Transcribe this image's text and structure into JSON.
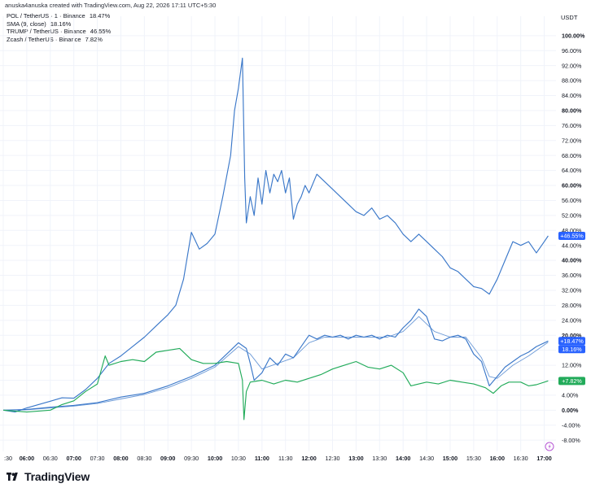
{
  "attribution": "anuska4anuska created with TradingView.com, Aug 22, 2026 17:11 UTC+5:30",
  "brand": "TradingView",
  "chart_data": {
    "type": "line",
    "unit_label": "USDT",
    "legend_placement": "top-left",
    "grid": true,
    "ylim": [
      -11,
      103
    ],
    "x_time_range": [
      "05:30",
      "17:15"
    ],
    "y_tick_labels": [
      "-8.00%",
      "-4.00%",
      "0.00%",
      "4.00%",
      "8.00%",
      "12.00%",
      "16.00%",
      "20.00%",
      "24.00%",
      "28.00%",
      "32.00%",
      "36.00%",
      "40.00%",
      "44.00%",
      "48.00%",
      "52.00%",
      "56.00%",
      "60.00%",
      "64.00%",
      "68.00%",
      "72.00%",
      "76.00%",
      "80.00%",
      "84.00%",
      "88.00%",
      "92.00%",
      "96.00%",
      "100.00%"
    ],
    "y_tick_values": [
      -8,
      -4,
      0,
      4,
      8,
      12,
      16,
      20,
      24,
      28,
      32,
      36,
      40,
      44,
      48,
      52,
      56,
      60,
      64,
      68,
      72,
      76,
      80,
      84,
      88,
      92,
      96,
      100
    ],
    "y_bold_values": [
      0,
      20,
      40,
      60,
      80,
      100
    ],
    "x_tick_labels": [
      ":30",
      "06:00",
      "06:30",
      "07:00",
      "07:30",
      "08:00",
      "08:30",
      "09:00",
      "09:30",
      "10:00",
      "10:30",
      "11:00",
      "11:30",
      "12:00",
      "12:30",
      "13:00",
      "13:30",
      "14:00",
      "14:30",
      "15:00",
      "15:30",
      "16:00",
      "16:30",
      "17:00"
    ],
    "x_tick_times": [
      "05:30",
      "06:00",
      "06:30",
      "07:00",
      "07:30",
      "08:00",
      "08:30",
      "09:00",
      "09:30",
      "10:00",
      "10:30",
      "11:00",
      "11:30",
      "12:00",
      "12:30",
      "13:00",
      "13:30",
      "14:00",
      "14:30",
      "15:00",
      "15:30",
      "16:00",
      "16:30",
      "17:00"
    ],
    "x_bold_labels": [
      "06:00",
      "07:00",
      "08:00",
      "09:00",
      "10:00",
      "11:00",
      "12:00",
      "13:00",
      "14:00",
      "15:00",
      "16:00",
      "17:00"
    ],
    "series": [
      {
        "name": "TRUMP / TetherUS · Binance",
        "legend_value": "46.55%",
        "last_label": "+46.55%",
        "color": "#3b78c9",
        "points": [
          [
            "05:30",
            0
          ],
          [
            "05:45",
            -0.5
          ],
          [
            "06:00",
            0.6
          ],
          [
            "06:15",
            1.5
          ],
          [
            "06:30",
            2.4
          ],
          [
            "06:45",
            3.3
          ],
          [
            "07:00",
            3.2
          ],
          [
            "07:15",
            5.5
          ],
          [
            "07:30",
            8.5
          ],
          [
            "07:45",
            12.5
          ],
          [
            "08:00",
            14.5
          ],
          [
            "08:15",
            17
          ],
          [
            "08:30",
            19.5
          ],
          [
            "08:45",
            22.5
          ],
          [
            "09:00",
            25.5
          ],
          [
            "09:10",
            28
          ],
          [
            "09:20",
            35
          ],
          [
            "09:30",
            47.5
          ],
          [
            "09:40",
            43
          ],
          [
            "09:50",
            44.5
          ],
          [
            "10:00",
            47
          ],
          [
            "10:10",
            57
          ],
          [
            "10:20",
            68
          ],
          [
            "10:25",
            80
          ],
          [
            "10:30",
            86
          ],
          [
            "10:35",
            94
          ],
          [
            "10:38",
            62
          ],
          [
            "10:40",
            50
          ],
          [
            "10:45",
            57
          ],
          [
            "10:50",
            52
          ],
          [
            "10:55",
            62
          ],
          [
            "11:00",
            55
          ],
          [
            "11:05",
            64
          ],
          [
            "11:10",
            58
          ],
          [
            "11:15",
            63
          ],
          [
            "11:20",
            61
          ],
          [
            "11:25",
            64
          ],
          [
            "11:30",
            58
          ],
          [
            "11:35",
            62
          ],
          [
            "11:40",
            51
          ],
          [
            "11:45",
            55
          ],
          [
            "11:50",
            57
          ],
          [
            "11:55",
            60
          ],
          [
            "12:00",
            58
          ],
          [
            "12:10",
            63
          ],
          [
            "12:20",
            61
          ],
          [
            "12:30",
            59
          ],
          [
            "12:40",
            57
          ],
          [
            "12:50",
            55
          ],
          [
            "13:00",
            53
          ],
          [
            "13:10",
            52
          ],
          [
            "13:20",
            54
          ],
          [
            "13:30",
            51
          ],
          [
            "13:40",
            52
          ],
          [
            "13:50",
            50
          ],
          [
            "14:00",
            47
          ],
          [
            "14:10",
            45
          ],
          [
            "14:20",
            47
          ],
          [
            "14:30",
            45
          ],
          [
            "14:40",
            43
          ],
          [
            "14:50",
            41
          ],
          [
            "15:00",
            38
          ],
          [
            "15:10",
            37
          ],
          [
            "15:20",
            35
          ],
          [
            "15:30",
            33
          ],
          [
            "15:40",
            32.5
          ],
          [
            "15:50",
            31
          ],
          [
            "16:00",
            35
          ],
          [
            "16:10",
            40
          ],
          [
            "16:20",
            45
          ],
          [
            "16:30",
            44
          ],
          [
            "16:40",
            45
          ],
          [
            "16:50",
            42
          ],
          [
            "17:00",
            45
          ],
          [
            "17:05",
            46.55
          ]
        ]
      },
      {
        "name": "POL / TetherUS · 1 · Binance",
        "legend_value": "18.47%",
        "last_label": "+18.47%",
        "color": "#3b78c9",
        "points": [
          [
            "05:30",
            0
          ],
          [
            "06:00",
            0.2
          ],
          [
            "06:30",
            0.8
          ],
          [
            "07:00",
            1.3
          ],
          [
            "07:30",
            2
          ],
          [
            "08:00",
            3.5
          ],
          [
            "08:30",
            4.5
          ],
          [
            "09:00",
            6.5
          ],
          [
            "09:30",
            9
          ],
          [
            "10:00",
            12
          ],
          [
            "10:15",
            15
          ],
          [
            "10:30",
            18
          ],
          [
            "10:40",
            16.5
          ],
          [
            "10:45",
            12.5
          ],
          [
            "10:50",
            8
          ],
          [
            "11:00",
            10
          ],
          [
            "11:10",
            14
          ],
          [
            "11:20",
            12
          ],
          [
            "11:30",
            15
          ],
          [
            "11:40",
            14
          ],
          [
            "11:50",
            17
          ],
          [
            "12:00",
            20
          ],
          [
            "12:10",
            19
          ],
          [
            "12:20",
            20
          ],
          [
            "12:30",
            19.5
          ],
          [
            "12:40",
            20
          ],
          [
            "12:50",
            19
          ],
          [
            "13:00",
            20
          ],
          [
            "13:10",
            19.5
          ],
          [
            "13:20",
            20
          ],
          [
            "13:30",
            19
          ],
          [
            "13:40",
            20
          ],
          [
            "13:50",
            19.5
          ],
          [
            "14:00",
            22
          ],
          [
            "14:10",
            24
          ],
          [
            "14:20",
            27
          ],
          [
            "14:30",
            25
          ],
          [
            "14:40",
            19
          ],
          [
            "14:50",
            18.5
          ],
          [
            "15:00",
            19.5
          ],
          [
            "15:10",
            20
          ],
          [
            "15:20",
            19
          ],
          [
            "15:30",
            15
          ],
          [
            "15:40",
            13
          ],
          [
            "15:50",
            6.5
          ],
          [
            "16:00",
            9
          ],
          [
            "16:10",
            11.5
          ],
          [
            "16:20",
            13
          ],
          [
            "16:30",
            14.5
          ],
          [
            "16:40",
            15.5
          ],
          [
            "16:50",
            17
          ],
          [
            "17:05",
            18.47
          ]
        ]
      },
      {
        "name": "SMA (9, close)",
        "legend_value": "18.16%",
        "last_label": "18.16%",
        "color": "#3b78c9",
        "points": [
          [
            "05:30",
            0
          ],
          [
            "06:00",
            0.1
          ],
          [
            "06:30",
            0.6
          ],
          [
            "07:00",
            1.1
          ],
          [
            "07:30",
            1.8
          ],
          [
            "08:00",
            3
          ],
          [
            "08:30",
            4.2
          ],
          [
            "09:00",
            6
          ],
          [
            "09:30",
            8.5
          ],
          [
            "10:00",
            11.5
          ],
          [
            "10:30",
            17
          ],
          [
            "10:45",
            15
          ],
          [
            "11:00",
            11
          ],
          [
            "11:20",
            12.5
          ],
          [
            "11:40",
            14
          ],
          [
            "12:00",
            18
          ],
          [
            "12:20",
            19.5
          ],
          [
            "12:40",
            19.5
          ],
          [
            "13:00",
            19.5
          ],
          [
            "13:20",
            19.5
          ],
          [
            "13:40",
            19.5
          ],
          [
            "14:00",
            21
          ],
          [
            "14:20",
            25
          ],
          [
            "14:40",
            21
          ],
          [
            "15:00",
            19.5
          ],
          [
            "15:20",
            19.5
          ],
          [
            "15:40",
            14
          ],
          [
            "15:50",
            9
          ],
          [
            "16:00",
            8.5
          ],
          [
            "16:20",
            12
          ],
          [
            "16:40",
            14.5
          ],
          [
            "17:05",
            18.16
          ]
        ]
      },
      {
        "name": "Zcash / TetherUS · Binance",
        "legend_value": "7.82%",
        "last_label": "+7.82%",
        "color": "#22ab5a",
        "points": [
          [
            "05:30",
            0
          ],
          [
            "06:00",
            -0.5
          ],
          [
            "06:30",
            0
          ],
          [
            "06:45",
            1.5
          ],
          [
            "07:00",
            2.5
          ],
          [
            "07:15",
            5
          ],
          [
            "07:30",
            7
          ],
          [
            "07:40",
            14.5
          ],
          [
            "07:45",
            12
          ],
          [
            "08:00",
            13
          ],
          [
            "08:15",
            13.5
          ],
          [
            "08:30",
            13
          ],
          [
            "08:45",
            15.5
          ],
          [
            "09:00",
            16
          ],
          [
            "09:15",
            16.5
          ],
          [
            "09:30",
            13.5
          ],
          [
            "09:45",
            12.5
          ],
          [
            "10:00",
            12.5
          ],
          [
            "10:15",
            13
          ],
          [
            "10:30",
            12.5
          ],
          [
            "10:35",
            8
          ],
          [
            "10:37",
            -2.5
          ],
          [
            "10:40",
            5
          ],
          [
            "10:45",
            7.5
          ],
          [
            "11:00",
            8
          ],
          [
            "11:15",
            7
          ],
          [
            "11:30",
            8
          ],
          [
            "11:45",
            7.5
          ],
          [
            "12:00",
            8.5
          ],
          [
            "12:15",
            9.5
          ],
          [
            "12:30",
            11
          ],
          [
            "12:45",
            12
          ],
          [
            "13:00",
            13
          ],
          [
            "13:15",
            11.5
          ],
          [
            "13:30",
            11
          ],
          [
            "13:45",
            12
          ],
          [
            "14:00",
            10
          ],
          [
            "14:10",
            6.5
          ],
          [
            "14:20",
            7
          ],
          [
            "14:30",
            7.5
          ],
          [
            "14:45",
            7
          ],
          [
            "15:00",
            8
          ],
          [
            "15:15",
            7.5
          ],
          [
            "15:30",
            7
          ],
          [
            "15:45",
            6
          ],
          [
            "15:55",
            4.5
          ],
          [
            "16:05",
            6.5
          ],
          [
            "16:15",
            7.5
          ],
          [
            "16:30",
            7.5
          ],
          [
            "16:40",
            6.5
          ],
          [
            "16:50",
            6.8
          ],
          [
            "17:05",
            7.82
          ]
        ]
      }
    ]
  }
}
